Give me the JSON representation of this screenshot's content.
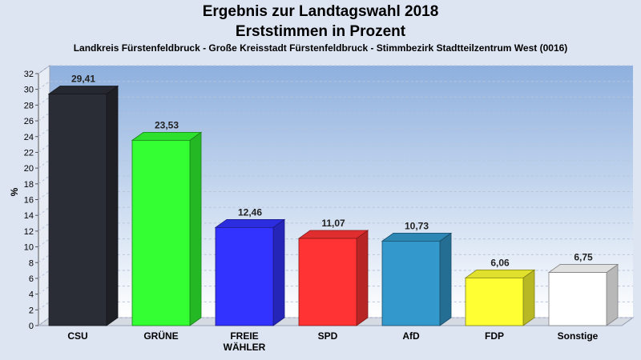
{
  "header": {
    "title_line1": "Ergebnis zur Landtagswahl 2018",
    "title_line2": "Erststimmen in Prozent",
    "subtitle": "Landkreis Fürstenfeldbruck - Große Kreisstadt Fürstenfeldbruck - Stimmbezirk Stadtteilzentrum West (0016)"
  },
  "colors": {
    "background": "#dde4f2",
    "plot_top": "#8eb0de",
    "plot_bottom": "#ffffff"
  },
  "chart_data": {
    "type": "bar",
    "title": "Ergebnis zur Landtagswahl 2018",
    "subtitle": "Erststimmen in Prozent",
    "ylabel": "%",
    "ylim": [
      0,
      32
    ],
    "yticks": [
      0,
      2,
      4,
      6,
      8,
      10,
      12,
      14,
      16,
      18,
      20,
      22,
      24,
      26,
      28,
      30,
      32
    ],
    "grid": true,
    "categories": [
      "CSU",
      "GRÜNE",
      "FREIE WÄHLER",
      "SPD",
      "AfD",
      "FDP",
      "Sonstige"
    ],
    "category_lines": [
      [
        "CSU"
      ],
      [
        "GRÜNE"
      ],
      [
        "FREIE",
        "WÄHLER"
      ],
      [
        "SPD"
      ],
      [
        "AfD"
      ],
      [
        "FDP"
      ],
      [
        "Sonstige"
      ]
    ],
    "values": [
      29.41,
      23.53,
      12.46,
      11.07,
      10.73,
      6.06,
      6.75
    ],
    "value_labels": [
      "29,41",
      "23,53",
      "12,46",
      "11,07",
      "10,73",
      "6,06",
      "6,75"
    ],
    "colors": [
      "#2a2d35",
      "#33ff33",
      "#3333ff",
      "#ff3333",
      "#3399cc",
      "#ffff33",
      "#ffffff"
    ]
  }
}
